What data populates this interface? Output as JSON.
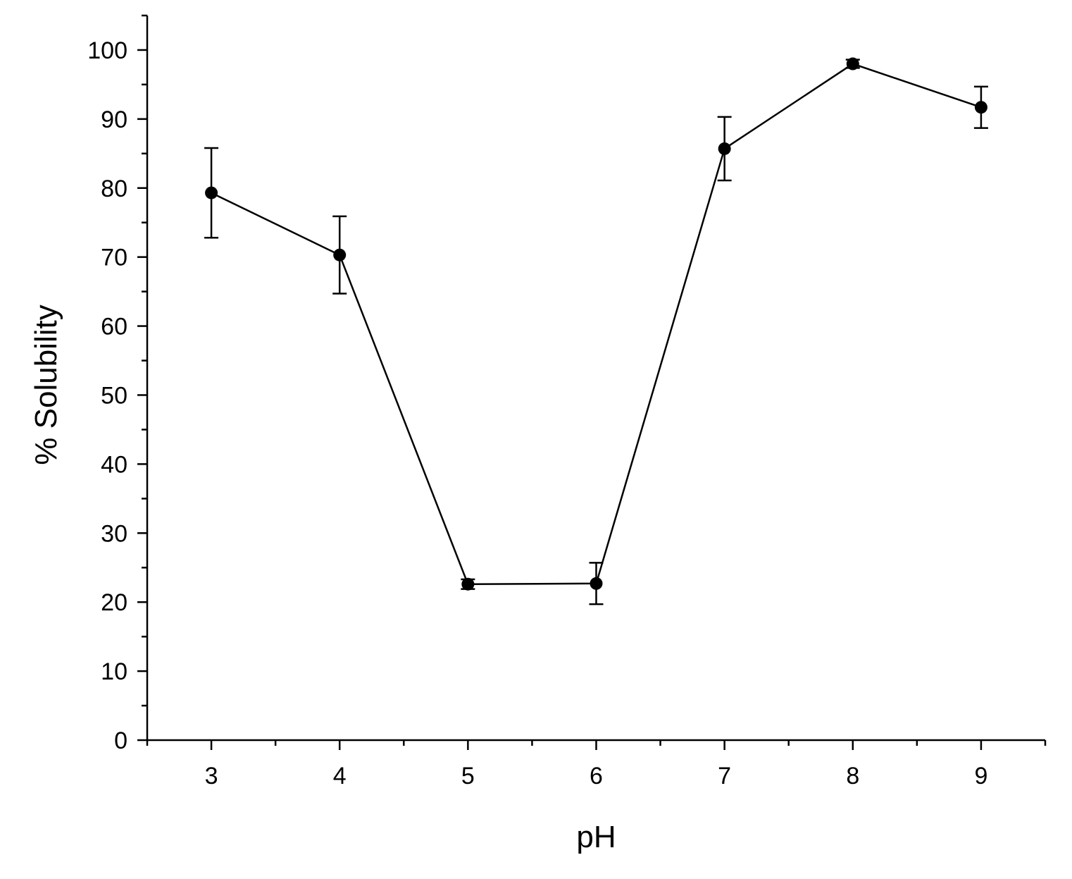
{
  "chart_data": {
    "type": "line",
    "title": "",
    "xlabel": "pH",
    "ylabel": "% Solubility",
    "xlim": [
      2.5,
      9.5
    ],
    "ylim": [
      0,
      105
    ],
    "x_ticks": [
      3,
      4,
      5,
      6,
      7,
      8,
      9
    ],
    "y_ticks": [
      0,
      10,
      20,
      30,
      40,
      50,
      60,
      70,
      80,
      90,
      100
    ],
    "grid": false,
    "legend": "none",
    "series": [
      {
        "x": [
          3,
          4,
          5,
          6,
          7,
          8,
          9
        ],
        "y": [
          79.3,
          70.3,
          22.6,
          22.7,
          85.7,
          98.0,
          91.7
        ],
        "error": [
          6.5,
          5.6,
          0.7,
          3.0,
          4.6,
          0.6,
          3.0
        ],
        "color": "#000000",
        "marker": "circle"
      }
    ]
  }
}
